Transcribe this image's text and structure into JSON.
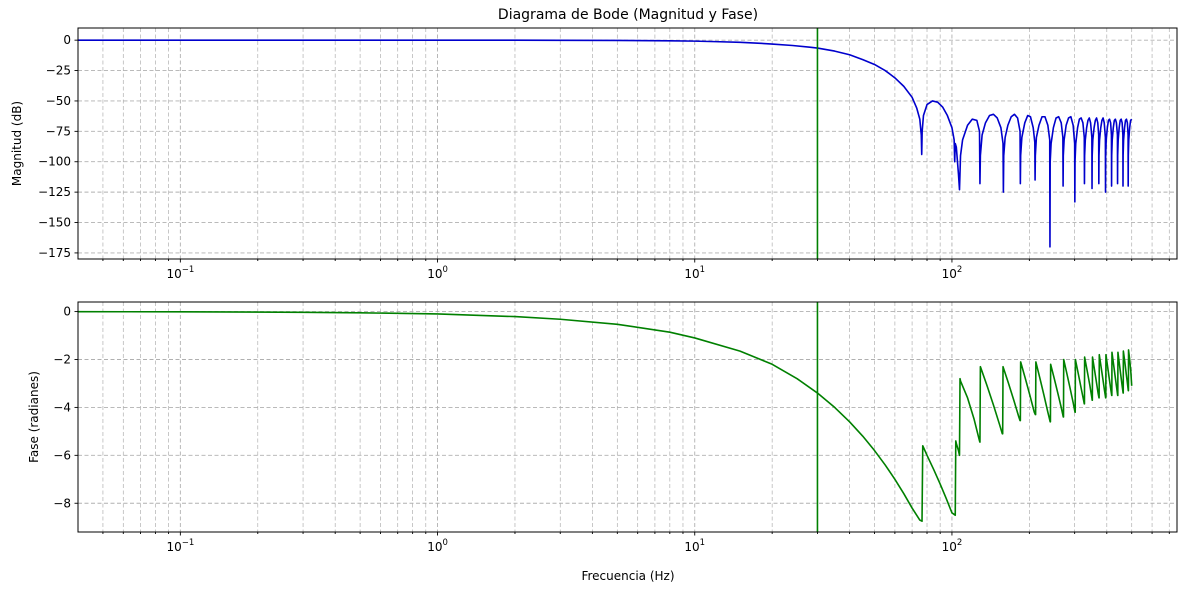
{
  "chart_data": [
    {
      "type": "line",
      "title": "Diagrama de Bode (Magnitud y Fase)",
      "xlabel": "",
      "ylabel": "Magnitud (dB)",
      "xscale": "log",
      "xlim": [
        0.04,
        750
      ],
      "ylim": [
        -180,
        10
      ],
      "x_ticks": [
        {
          "value": 0.1,
          "base": "10",
          "exp": "−1"
        },
        {
          "value": 1,
          "base": "10",
          "exp": "0"
        },
        {
          "value": 10,
          "base": "10",
          "exp": "1"
        },
        {
          "value": 100,
          "base": "10",
          "exp": "2"
        }
      ],
      "y_ticks": [
        {
          "value": 0,
          "label": "0"
        },
        {
          "value": -25,
          "label": "−25"
        },
        {
          "value": -50,
          "label": "−50"
        },
        {
          "value": -75,
          "label": "−75"
        },
        {
          "value": -100,
          "label": "−100"
        },
        {
          "value": -125,
          "label": "−125"
        },
        {
          "value": -150,
          "label": "−150"
        },
        {
          "value": -175,
          "label": "−175"
        }
      ],
      "grid": true,
      "vline": {
        "x": 30,
        "color": "#008000"
      },
      "series": [
        {
          "color": "#0000cd",
          "x": [
            0.04,
            0.1,
            0.3,
            1,
            2,
            3,
            5,
            8,
            10,
            12,
            15,
            18,
            20,
            24,
            28,
            30,
            35,
            40,
            45,
            50,
            55,
            60,
            65,
            70,
            73,
            75,
            76,
            76.3,
            76.6,
            77.5,
            80,
            84,
            88,
            92,
            96,
            100,
            102,
            102.5,
            103,
            104,
            106,
            107,
            108,
            110,
            115,
            120,
            125,
            128,
            128.5,
            129,
            131,
            135,
            140,
            145,
            150,
            155,
            158,
            158.5,
            159,
            161,
            165,
            170,
            175,
            180,
            184,
            184.5,
            185,
            187,
            192,
            197,
            202,
            207,
            210,
            210.5,
            211,
            213,
            218,
            224,
            230,
            236,
            240,
            240.5,
            241,
            243,
            248,
            254,
            260,
            266,
            270,
            270.5,
            271,
            273,
            278,
            284,
            290,
            296,
            300,
            300.5,
            301,
            303,
            308,
            313,
            318,
            323,
            327,
            327.5,
            328,
            330,
            334,
            338,
            342,
            346,
            350,
            350.5,
            351,
            353,
            357,
            361,
            365,
            369,
            372,
            372.5,
            373,
            375,
            379,
            383,
            387,
            391,
            395,
            395.5,
            396,
            398,
            402,
            406,
            410,
            414,
            417,
            417.5,
            418,
            420,
            424,
            428,
            432,
            436,
            440,
            440.5,
            441,
            443,
            447,
            451,
            455,
            459,
            462,
            462.5,
            463,
            465,
            469,
            473,
            477,
            481,
            484,
            484.5,
            485,
            487,
            491,
            495,
            500
          ],
          "y": [
            0,
            0,
            0,
            0,
            0,
            -0.1,
            -0.2,
            -0.5,
            -0.8,
            -1.2,
            -1.8,
            -2.6,
            -3.2,
            -4.4,
            -5.8,
            -6.5,
            -9,
            -12,
            -16,
            -20,
            -25,
            -31,
            -38,
            -47,
            -56,
            -65,
            -78,
            -94,
            -75,
            -62,
            -53,
            -50,
            -51,
            -55,
            -62,
            -72,
            -82,
            -100,
            -85,
            -88,
            -110,
            -123,
            -95,
            -82,
            -70,
            -65,
            -66,
            -75,
            -118,
            -95,
            -78,
            -68,
            -62,
            -61,
            -64,
            -72,
            -85,
            -125,
            -95,
            -80,
            -70,
            -63,
            -61,
            -64,
            -75,
            -118,
            -95,
            -80,
            -68,
            -62,
            -63,
            -72,
            -84,
            -115,
            -95,
            -80,
            -70,
            -63,
            -63,
            -70,
            -82,
            -170,
            -100,
            -85,
            -72,
            -64,
            -63,
            -68,
            -80,
            -120,
            -95,
            -82,
            -70,
            -64,
            -63,
            -70,
            -85,
            -133,
            -100,
            -85,
            -72,
            -65,
            -64,
            -68,
            -80,
            -118,
            -95,
            -82,
            -72,
            -66,
            -64,
            -68,
            -80,
            -122,
            -95,
            -82,
            -72,
            -66,
            -64,
            -68,
            -78,
            -118,
            -95,
            -82,
            -72,
            -66,
            -64,
            -68,
            -80,
            -125,
            -95,
            -82,
            -72,
            -66,
            -65,
            -68,
            -78,
            -120,
            -95,
            -82,
            -72,
            -66,
            -65,
            -68,
            -78,
            -118,
            -95,
            -82,
            -72,
            -66,
            -65,
            -68,
            -78,
            -120,
            -95,
            -82,
            -72,
            -66,
            -65,
            -68,
            -78,
            -120,
            -95,
            -82,
            -72,
            -66,
            -65
          ]
        }
      ]
    },
    {
      "type": "line",
      "title": "",
      "xlabel": "Frecuencia (Hz)",
      "ylabel": "Fase (radianes)",
      "xscale": "log",
      "xlim": [
        0.04,
        750
      ],
      "ylim": [
        -9.2,
        0.4
      ],
      "x_ticks": [
        {
          "value": 0.1,
          "base": "10",
          "exp": "−1"
        },
        {
          "value": 1,
          "base": "10",
          "exp": "0"
        },
        {
          "value": 10,
          "base": "10",
          "exp": "1"
        },
        {
          "value": 100,
          "base": "10",
          "exp": "2"
        }
      ],
      "y_ticks": [
        {
          "value": 0,
          "label": "0"
        },
        {
          "value": -2,
          "label": "−2"
        },
        {
          "value": -4,
          "label": "−4"
        },
        {
          "value": -6,
          "label": "−6"
        },
        {
          "value": -8,
          "label": "−8"
        }
      ],
      "grid": true,
      "vline": {
        "x": 30,
        "color": "#008000"
      },
      "series": [
        {
          "color": "#008000",
          "x": [
            0.04,
            0.1,
            0.3,
            0.5,
            1,
            2,
            3,
            5,
            8,
            10,
            15,
            20,
            25,
            30,
            35,
            40,
            45,
            50,
            55,
            60,
            65,
            70,
            75,
            76.5,
            77,
            80,
            85,
            90,
            95,
            100,
            103,
            103.5,
            104,
            106,
            107,
            107.5,
            108,
            115,
            122,
            128,
            128.5,
            129,
            137,
            145,
            153,
            157,
            157.5,
            158,
            166,
            174,
            182,
            184,
            184.5,
            185,
            193,
            201,
            209,
            211,
            211.5,
            212,
            220,
            228,
            236,
            241,
            241.5,
            242,
            250,
            258,
            266,
            271,
            271.5,
            272,
            280,
            288,
            296,
            301,
            301.5,
            302,
            310,
            318,
            325,
            327,
            327.5,
            328,
            336,
            344,
            350,
            351,
            351.5,
            352,
            358,
            364,
            370,
            373,
            373.5,
            374,
            380,
            386,
            392,
            396,
            396.5,
            397,
            403,
            409,
            414,
            418,
            418.5,
            419,
            425,
            431,
            436,
            441,
            441.5,
            442,
            448,
            454,
            459,
            463,
            463.5,
            464,
            470,
            476,
            480,
            485,
            485.5,
            486,
            491,
            496,
            500
          ],
          "y": [
            -0.004,
            -0.01,
            -0.03,
            -0.05,
            -0.1,
            -0.21,
            -0.32,
            -0.53,
            -0.86,
            -1.1,
            -1.65,
            -2.2,
            -2.8,
            -3.4,
            -4,
            -4.6,
            -5.2,
            -5.8,
            -6.4,
            -7,
            -7.6,
            -8.2,
            -8.7,
            -8.75,
            -5.6,
            -6,
            -6.6,
            -7.2,
            -7.8,
            -8.4,
            -8.5,
            -5.4,
            -5.5,
            -5.8,
            -6,
            -2.8,
            -2.9,
            -3.6,
            -4.5,
            -5.4,
            -5.45,
            -2.3,
            -3.1,
            -3.9,
            -4.7,
            -5.1,
            -5.1,
            -2.3,
            -3,
            -3.7,
            -4.4,
            -4.55,
            -4.55,
            -2.1,
            -2.8,
            -3.5,
            -4.2,
            -4.3,
            -4.3,
            -2.1,
            -2.8,
            -3.5,
            -4.2,
            -4.6,
            -4.6,
            -2.2,
            -2.8,
            -3.4,
            -4,
            -4.4,
            -4.4,
            -2,
            -2.6,
            -3.2,
            -3.8,
            -4.2,
            -4.2,
            -2,
            -2.6,
            -3.2,
            -3.7,
            -3.85,
            -3.85,
            -1.9,
            -2.5,
            -3.1,
            -3.6,
            -3.7,
            -3.7,
            -1.9,
            -2.4,
            -2.9,
            -3.4,
            -3.6,
            -3.6,
            -1.8,
            -2.3,
            -2.8,
            -3.3,
            -3.6,
            -3.6,
            -1.8,
            -2.3,
            -2.8,
            -3.2,
            -3.5,
            -3.5,
            -1.7,
            -2.2,
            -2.7,
            -3.1,
            -3.5,
            -3.5,
            -1.7,
            -2.2,
            -2.7,
            -3.1,
            -3.4,
            -3.4,
            -1.65,
            -2.1,
            -2.6,
            -2.9,
            -3.3,
            -3.3,
            -1.6,
            -2.0,
            -2.5,
            -3.1
          ]
        }
      ]
    }
  ]
}
